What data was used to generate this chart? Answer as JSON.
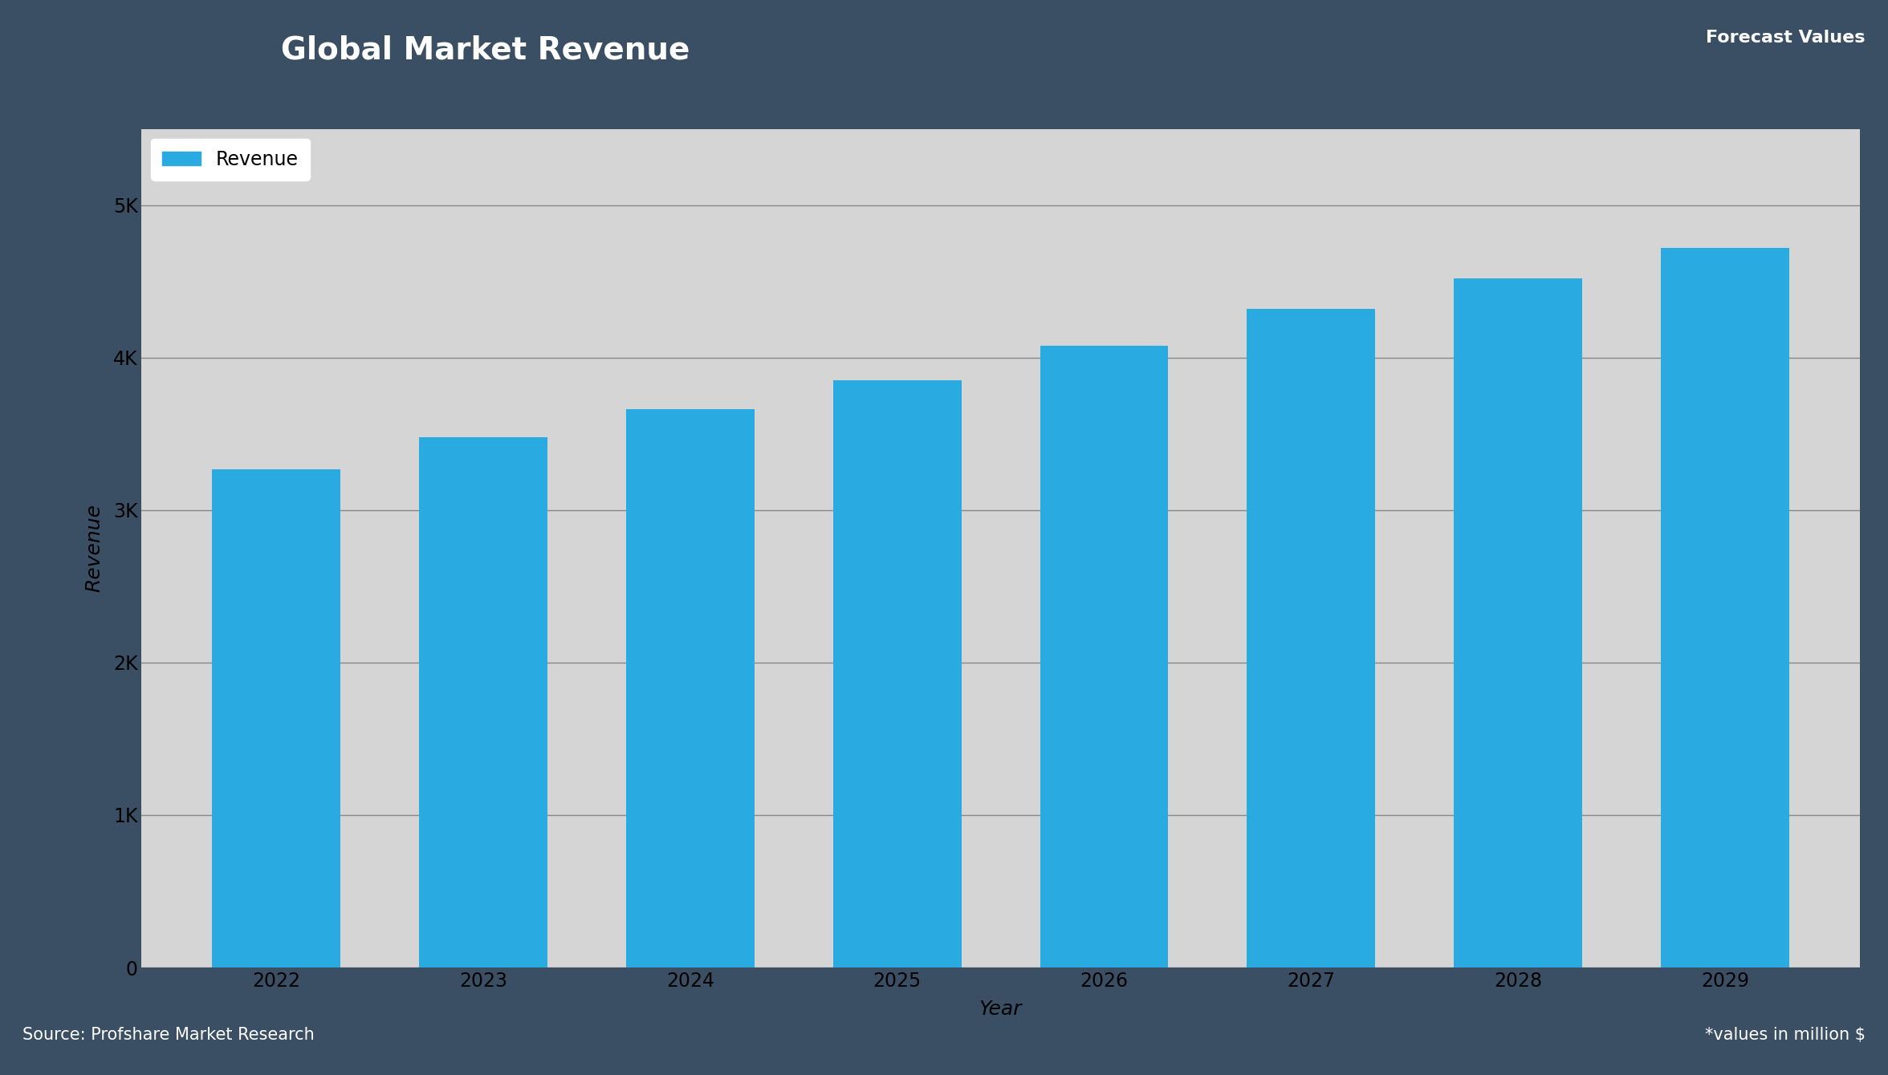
{
  "title": "Global Market Revenue",
  "years": [
    2022,
    2023,
    2024,
    2025,
    2026,
    2027,
    2028,
    2029
  ],
  "values": [
    3270,
    3480,
    3660,
    3850,
    4080,
    4320,
    4520,
    4720
  ],
  "bar_color": "#29ABE2",
  "ylabel": "Revenue",
  "xlabel": "Year",
  "yticks": [
    0,
    1000,
    2000,
    3000,
    4000,
    5000
  ],
  "ytick_labels": [
    "0",
    "1K",
    "2K",
    "3K",
    "4K",
    "5K"
  ],
  "ylim": [
    0,
    5500
  ],
  "legend_label": "Revenue",
  "title_bg_color": "#5B7DA8",
  "outer_bg_color": "#3A4F63",
  "plot_bg_color": "#D5D5D5",
  "title_text_color": "#FFFFFF",
  "axis_text_color": "#000000",
  "source_text": "Source: Profshare Market Research",
  "forecast_text": "*values in million $",
  "forecast_label": "Forecast Values",
  "title_fontsize": 28,
  "axis_label_fontsize": 18,
  "tick_fontsize": 17,
  "legend_fontsize": 17,
  "footer_fontsize": 15,
  "forecast_fontsize": 16,
  "grid_color": "#555555",
  "grid_alpha": 0.6,
  "grid_linewidth": 1.0
}
